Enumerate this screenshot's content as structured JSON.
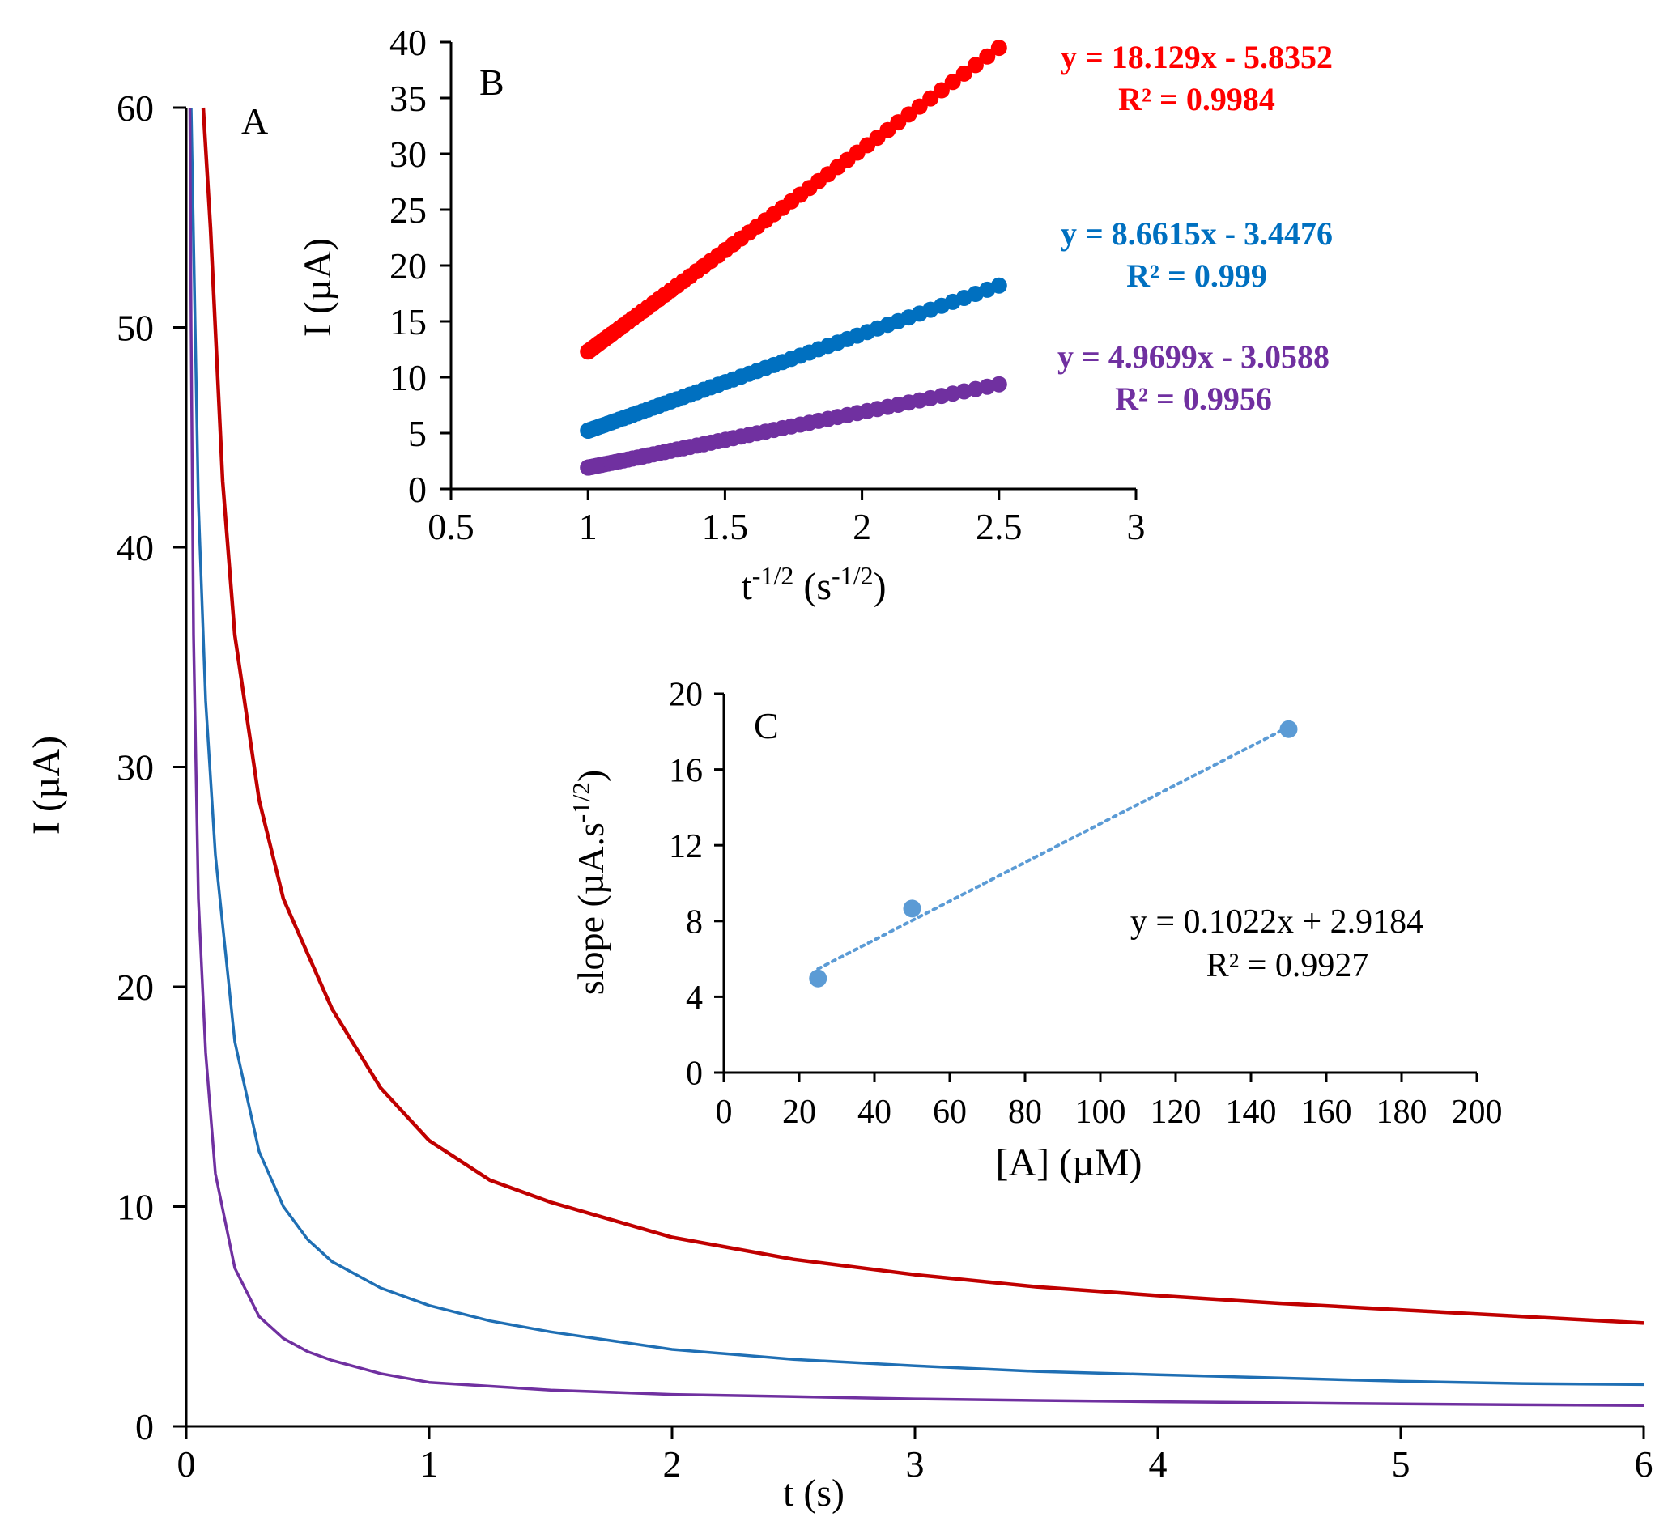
{
  "chart_data": [
    {
      "id": "A",
      "type": "line",
      "panel_label": "A",
      "title": "",
      "xlabel": "t (s)",
      "ylabel": "I (µA)",
      "xlim": [
        0,
        6
      ],
      "ylim": [
        0,
        60
      ],
      "x_ticks": [
        0,
        1,
        2,
        3,
        4,
        5,
        6
      ],
      "y_ticks": [
        0,
        10,
        20,
        30,
        40,
        50,
        60
      ],
      "grid": false,
      "series": [
        {
          "name": "red",
          "color": "#c00000",
          "x": [
            0.07,
            0.1,
            0.15,
            0.2,
            0.3,
            0.4,
            0.5,
            0.6,
            0.8,
            1.0,
            1.25,
            1.5,
            2.0,
            2.5,
            3.0,
            3.5,
            4.0,
            4.5,
            5.0,
            5.5,
            6.0
          ],
          "y": [
            60,
            54.5,
            43,
            36,
            28.5,
            24,
            21.5,
            19,
            15.4,
            13,
            11.2,
            10.2,
            8.6,
            7.6,
            6.9,
            6.35,
            5.95,
            5.6,
            5.3,
            5.0,
            4.7
          ]
        },
        {
          "name": "blue",
          "color": "#1f6fb4",
          "x": [
            0.02,
            0.03,
            0.05,
            0.08,
            0.12,
            0.2,
            0.3,
            0.4,
            0.5,
            0.6,
            0.8,
            1.0,
            1.25,
            1.5,
            2.0,
            2.5,
            3.0,
            3.5,
            4.0,
            4.5,
            5.0,
            5.5,
            6.0
          ],
          "y": [
            60,
            54,
            42,
            33,
            26,
            17.5,
            12.5,
            10,
            8.5,
            7.5,
            6.3,
            5.5,
            4.8,
            4.3,
            3.5,
            3.05,
            2.75,
            2.5,
            2.35,
            2.2,
            2.05,
            1.95,
            1.9
          ]
        },
        {
          "name": "purple",
          "color": "#7030a0",
          "x": [
            0.015,
            0.02,
            0.03,
            0.05,
            0.08,
            0.12,
            0.2,
            0.3,
            0.4,
            0.5,
            0.6,
            0.8,
            1.0,
            1.5,
            2.0,
            2.5,
            3.0,
            3.5,
            4.0,
            4.5,
            5.0,
            5.5,
            6.0
          ],
          "y": [
            60,
            50,
            36,
            24,
            17,
            11.5,
            7.2,
            5,
            4,
            3.4,
            3.0,
            2.4,
            2.0,
            1.65,
            1.45,
            1.35,
            1.25,
            1.18,
            1.12,
            1.07,
            1.02,
            0.98,
            0.95
          ]
        }
      ]
    },
    {
      "id": "B",
      "type": "scatter",
      "panel_label": "B",
      "title": "",
      "xlabel": "t",
      "xlabel_sup": "-1/2",
      "xlabel_unit": "(s",
      "xlabel_unit_sup": "-1/2",
      "xlabel_close": ")",
      "ylabel": "I (µA)",
      "xlim": [
        0.5,
        3
      ],
      "ylim": [
        0,
        40
      ],
      "x_ticks": [
        0.5,
        1,
        1.5,
        2,
        2.5,
        3
      ],
      "y_ticks": [
        0,
        5,
        10,
        15,
        20,
        25,
        30,
        35,
        40
      ],
      "x_range": [
        1.0,
        2.5
      ],
      "grid": false,
      "series": [
        {
          "name": "red",
          "color": "#ff0000",
          "slope": 18.129,
          "intercept": -5.8352,
          "equation": "y = 18.129x - 5.8352",
          "r2": "R² = 0.9984"
        },
        {
          "name": "blue",
          "color": "#0070c0",
          "slope": 8.6615,
          "intercept": -3.4476,
          "equation": "y = 8.6615x - 3.4476",
          "r2": "R² = 0.999"
        },
        {
          "name": "purple",
          "color": "#7030a0",
          "slope": 4.9699,
          "intercept": -3.0588,
          "equation": "y = 4.9699x - 3.0588",
          "r2": "R² = 0.9956"
        }
      ]
    },
    {
      "id": "C",
      "type": "scatter",
      "panel_label": "C",
      "title": "",
      "xlabel": "[A] (µM)",
      "ylabel": "slope (µA.s",
      "ylabel_sup": "-1/2",
      "ylabel_close": ")",
      "xlim": [
        0,
        200
      ],
      "ylim": [
        0,
        20
      ],
      "x_ticks": [
        0,
        20,
        40,
        60,
        80,
        100,
        120,
        140,
        160,
        180,
        200
      ],
      "y_ticks": [
        0,
        4,
        8,
        12,
        16,
        20
      ],
      "grid": false,
      "points": {
        "x": [
          25,
          50,
          150
        ],
        "y": [
          4.97,
          8.66,
          18.13
        ]
      },
      "trendline": {
        "slope": 0.1022,
        "intercept": 2.9184,
        "x_from": 25,
        "x_to": 150,
        "style": "dotted"
      },
      "equation": "y = 0.1022x + 2.9184",
      "r2": "R² = 0.9927",
      "marker_color": "#5b9bd5"
    }
  ]
}
